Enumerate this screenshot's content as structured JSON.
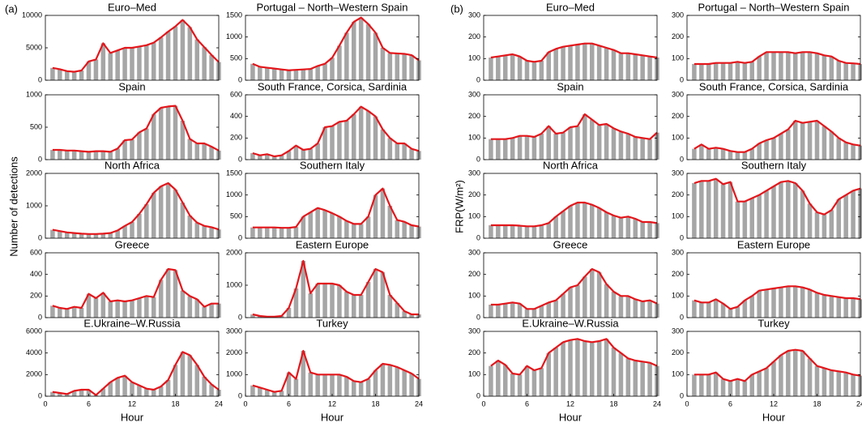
{
  "figure": {
    "panels": [
      {
        "label": "(a)",
        "ylabel": "Number of detections"
      },
      {
        "label": "(b)",
        "ylabel": "FRP(W/m²)"
      }
    ]
  },
  "chart_data": [
    {
      "type": "bar_line",
      "title": "Euro–Med",
      "x": [
        1,
        2,
        3,
        4,
        5,
        6,
        7,
        8,
        9,
        10,
        11,
        12,
        13,
        14,
        15,
        16,
        17,
        18,
        19,
        20,
        21,
        22,
        23,
        24
      ],
      "values": [
        1900,
        1700,
        1400,
        1300,
        1500,
        2900,
        3200,
        5700,
        4200,
        4600,
        5000,
        5000,
        5200,
        5400,
        5800,
        6600,
        7500,
        8300,
        9300,
        8200,
        6300,
        5100,
        3900,
        2800
      ],
      "xlim": [
        0,
        24
      ],
      "ylim": [
        0,
        10000
      ],
      "yticks": [
        0,
        5000,
        10000
      ],
      "color": "#a6a6a6",
      "line_color": "#e3161b"
    },
    {
      "type": "bar_line",
      "title": "Portugal – North–Western Spain",
      "x": [
        1,
        2,
        3,
        4,
        5,
        6,
        7,
        8,
        9,
        10,
        11,
        12,
        13,
        14,
        15,
        16,
        17,
        18,
        19,
        20,
        21,
        22,
        23,
        24
      ],
      "values": [
        380,
        310,
        290,
        270,
        250,
        230,
        240,
        250,
        260,
        330,
        380,
        520,
        800,
        1100,
        1350,
        1450,
        1300,
        1100,
        750,
        630,
        620,
        610,
        580,
        460
      ],
      "xlim": [
        0,
        24
      ],
      "ylim": [
        0,
        1500
      ],
      "yticks": [
        0,
        500,
        1000,
        1500
      ],
      "color": "#a6a6a6",
      "line_color": "#e3161b"
    },
    {
      "type": "bar_line",
      "title": "Spain",
      "x": [
        1,
        2,
        3,
        4,
        5,
        6,
        7,
        8,
        9,
        10,
        11,
        12,
        13,
        14,
        15,
        16,
        17,
        18,
        19,
        20,
        21,
        22,
        23,
        24
      ],
      "values": [
        150,
        150,
        140,
        140,
        130,
        120,
        130,
        130,
        120,
        170,
        300,
        310,
        420,
        480,
        700,
        800,
        820,
        830,
        600,
        320,
        250,
        250,
        200,
        140
      ],
      "xlim": [
        0,
        24
      ],
      "ylim": [
        0,
        1000
      ],
      "yticks": [
        0,
        500,
        1000
      ],
      "color": "#a6a6a6",
      "line_color": "#e3161b"
    },
    {
      "type": "bar_line",
      "title": "South France, Corsica, Sardinia",
      "x": [
        1,
        2,
        3,
        4,
        5,
        6,
        7,
        8,
        9,
        10,
        11,
        12,
        13,
        14,
        15,
        16,
        17,
        18,
        19,
        20,
        21,
        22,
        23,
        24
      ],
      "values": [
        60,
        40,
        50,
        30,
        40,
        80,
        130,
        90,
        100,
        150,
        300,
        310,
        350,
        360,
        420,
        490,
        450,
        400,
        280,
        200,
        150,
        150,
        100,
        80
      ],
      "xlim": [
        0,
        24
      ],
      "ylim": [
        0,
        600
      ],
      "yticks": [
        0,
        200,
        400,
        600
      ],
      "color": "#a6a6a6",
      "line_color": "#e3161b"
    },
    {
      "type": "bar_line",
      "title": "North Africa",
      "x": [
        1,
        2,
        3,
        4,
        5,
        6,
        7,
        8,
        9,
        10,
        11,
        12,
        13,
        14,
        15,
        16,
        17,
        18,
        19,
        20,
        21,
        22,
        23,
        24
      ],
      "values": [
        260,
        220,
        180,
        160,
        140,
        130,
        130,
        140,
        160,
        240,
        380,
        500,
        750,
        1050,
        1400,
        1600,
        1700,
        1500,
        1100,
        700,
        480,
        380,
        340,
        270
      ],
      "xlim": [
        0,
        24
      ],
      "ylim": [
        0,
        2000
      ],
      "yticks": [
        0,
        1000,
        2000
      ],
      "color": "#a6a6a6",
      "line_color": "#e3161b"
    },
    {
      "type": "bar_line",
      "title": "Southern Italy",
      "x": [
        1,
        2,
        3,
        4,
        5,
        6,
        7,
        8,
        9,
        10,
        11,
        12,
        13,
        14,
        15,
        16,
        17,
        18,
        19,
        20,
        21,
        22,
        23,
        24
      ],
      "values": [
        250,
        250,
        250,
        250,
        240,
        240,
        260,
        500,
        600,
        700,
        650,
        580,
        500,
        400,
        330,
        330,
        500,
        1000,
        1150,
        750,
        420,
        380,
        300,
        270
      ],
      "xlim": [
        0,
        24
      ],
      "ylim": [
        0,
        1500
      ],
      "yticks": [
        0,
        500,
        1000,
        1500
      ],
      "color": "#a6a6a6",
      "line_color": "#e3161b"
    },
    {
      "type": "bar_line",
      "title": "Greece",
      "x": [
        1,
        2,
        3,
        4,
        5,
        6,
        7,
        8,
        9,
        10,
        11,
        12,
        13,
        14,
        15,
        16,
        17,
        18,
        19,
        20,
        21,
        22,
        23,
        24
      ],
      "values": [
        110,
        90,
        80,
        100,
        90,
        220,
        180,
        230,
        150,
        160,
        150,
        160,
        180,
        200,
        190,
        350,
        450,
        440,
        250,
        200,
        170,
        100,
        130,
        130
      ],
      "xlim": [
        0,
        24
      ],
      "ylim": [
        0,
        600
      ],
      "yticks": [
        0,
        200,
        400,
        600
      ],
      "color": "#a6a6a6",
      "line_color": "#e3161b"
    },
    {
      "type": "bar_line",
      "title": "Eastern Europe",
      "x": [
        1,
        2,
        3,
        4,
        5,
        6,
        7,
        8,
        9,
        10,
        11,
        12,
        13,
        14,
        15,
        16,
        17,
        18,
        19,
        20,
        21,
        22,
        23,
        24
      ],
      "values": [
        100,
        50,
        30,
        30,
        50,
        300,
        900,
        1750,
        750,
        1050,
        1050,
        1050,
        1000,
        800,
        700,
        700,
        1100,
        1500,
        1400,
        700,
        450,
        200,
        100,
        100
      ],
      "xlim": [
        0,
        24
      ],
      "ylim": [
        0,
        2000
      ],
      "yticks": [
        0,
        1000,
        2000
      ],
      "color": "#a6a6a6",
      "line_color": "#e3161b"
    },
    {
      "type": "bar_line",
      "title": "E.Ukraine–W.Russia",
      "x": [
        1,
        2,
        3,
        4,
        5,
        6,
        7,
        8,
        9,
        10,
        11,
        12,
        13,
        14,
        15,
        16,
        17,
        18,
        19,
        20,
        21,
        22,
        23,
        24
      ],
      "values": [
        400,
        300,
        200,
        500,
        600,
        600,
        100,
        700,
        1300,
        1700,
        1900,
        1300,
        1000,
        700,
        600,
        900,
        1500,
        2900,
        4100,
        3800,
        2900,
        1800,
        1100,
        600
      ],
      "xlim": [
        0,
        24
      ],
      "ylim": [
        0,
        6000
      ],
      "yticks": [
        0,
        2000,
        4000,
        6000
      ],
      "xticks": [
        0,
        6,
        12,
        18,
        24
      ],
      "xlabel": "Hour",
      "color": "#a6a6a6",
      "line_color": "#e3161b"
    },
    {
      "type": "bar_line",
      "title": "Turkey",
      "x": [
        1,
        2,
        3,
        4,
        5,
        6,
        7,
        8,
        9,
        10,
        11,
        12,
        13,
        14,
        15,
        16,
        17,
        18,
        19,
        20,
        21,
        22,
        23,
        24
      ],
      "values": [
        500,
        400,
        300,
        200,
        250,
        1100,
        800,
        2100,
        1100,
        1000,
        1000,
        1000,
        1000,
        900,
        700,
        650,
        800,
        1200,
        1500,
        1450,
        1350,
        1200,
        1050,
        800
      ],
      "xlim": [
        0,
        24
      ],
      "ylim": [
        0,
        3000
      ],
      "yticks": [
        0,
        1000,
        2000,
        3000
      ],
      "xticks": [
        0,
        6,
        12,
        18,
        24
      ],
      "xlabel": "Hour",
      "color": "#a6a6a6",
      "line_color": "#e3161b"
    },
    {
      "type": "bar_line",
      "title": "Euro–Med",
      "x": [
        1,
        2,
        3,
        4,
        5,
        6,
        7,
        8,
        9,
        10,
        11,
        12,
        13,
        14,
        15,
        16,
        17,
        18,
        19,
        20,
        21,
        22,
        23,
        24
      ],
      "values": [
        105,
        110,
        115,
        120,
        110,
        90,
        85,
        90,
        130,
        145,
        155,
        160,
        165,
        170,
        170,
        160,
        150,
        140,
        125,
        125,
        120,
        115,
        110,
        105
      ],
      "xlim": [
        0,
        24
      ],
      "ylim": [
        0,
        300
      ],
      "yticks": [
        0,
        100,
        200,
        300
      ],
      "color": "#a6a6a6",
      "line_color": "#e3161b"
    },
    {
      "type": "bar_line",
      "title": "Portugal – North–Western Spain",
      "x": [
        1,
        2,
        3,
        4,
        5,
        6,
        7,
        8,
        9,
        10,
        11,
        12,
        13,
        14,
        15,
        16,
        17,
        18,
        19,
        20,
        21,
        22,
        23,
        24
      ],
      "values": [
        75,
        75,
        75,
        80,
        80,
        80,
        85,
        80,
        85,
        110,
        130,
        130,
        130,
        130,
        125,
        130,
        130,
        125,
        115,
        110,
        90,
        80,
        78,
        75
      ],
      "xlim": [
        0,
        24
      ],
      "ylim": [
        0,
        300
      ],
      "yticks": [
        0,
        100,
        200,
        300
      ],
      "color": "#a6a6a6",
      "line_color": "#e3161b"
    },
    {
      "type": "bar_line",
      "title": "Spain",
      "x": [
        1,
        2,
        3,
        4,
        5,
        6,
        7,
        8,
        9,
        10,
        11,
        12,
        13,
        14,
        15,
        16,
        17,
        18,
        19,
        20,
        21,
        22,
        23,
        24
      ],
      "values": [
        95,
        95,
        95,
        100,
        110,
        110,
        105,
        120,
        155,
        120,
        125,
        150,
        155,
        210,
        185,
        160,
        165,
        145,
        130,
        120,
        105,
        100,
        95,
        125
      ],
      "xlim": [
        0,
        24
      ],
      "ylim": [
        0,
        300
      ],
      "yticks": [
        0,
        100,
        200,
        300
      ],
      "color": "#a6a6a6",
      "line_color": "#e3161b"
    },
    {
      "type": "bar_line",
      "title": "South France, Corsica, Sardinia",
      "x": [
        1,
        2,
        3,
        4,
        5,
        6,
        7,
        8,
        9,
        10,
        11,
        12,
        13,
        14,
        15,
        16,
        17,
        18,
        19,
        20,
        21,
        22,
        23,
        24
      ],
      "values": [
        50,
        70,
        50,
        55,
        50,
        40,
        35,
        35,
        50,
        75,
        90,
        100,
        120,
        140,
        180,
        170,
        175,
        180,
        155,
        130,
        100,
        80,
        70,
        65
      ],
      "xlim": [
        0,
        24
      ],
      "ylim": [
        0,
        300
      ],
      "yticks": [
        0,
        100,
        200,
        300
      ],
      "color": "#a6a6a6",
      "line_color": "#e3161b"
    },
    {
      "type": "bar_line",
      "title": "North Africa",
      "x": [
        1,
        2,
        3,
        4,
        5,
        6,
        7,
        8,
        9,
        10,
        11,
        12,
        13,
        14,
        15,
        16,
        17,
        18,
        19,
        20,
        21,
        22,
        23,
        24
      ],
      "values": [
        60,
        60,
        60,
        60,
        58,
        55,
        55,
        60,
        70,
        100,
        125,
        150,
        165,
        165,
        155,
        140,
        120,
        105,
        95,
        100,
        90,
        75,
        75,
        70
      ],
      "xlim": [
        0,
        24
      ],
      "ylim": [
        0,
        300
      ],
      "yticks": [
        0,
        100,
        200,
        300
      ],
      "color": "#a6a6a6",
      "line_color": "#e3161b"
    },
    {
      "type": "bar_line",
      "title": "Southern Italy",
      "x": [
        1,
        2,
        3,
        4,
        5,
        6,
        7,
        8,
        9,
        10,
        11,
        12,
        13,
        14,
        15,
        16,
        17,
        18,
        19,
        20,
        21,
        22,
        23,
        24
      ],
      "values": [
        255,
        265,
        265,
        275,
        250,
        260,
        170,
        170,
        185,
        200,
        220,
        240,
        260,
        265,
        255,
        220,
        160,
        120,
        110,
        130,
        180,
        200,
        220,
        230
      ],
      "xlim": [
        0,
        24
      ],
      "ylim": [
        0,
        300
      ],
      "yticks": [
        0,
        100,
        200,
        300
      ],
      "color": "#a6a6a6",
      "line_color": "#e3161b"
    },
    {
      "type": "bar_line",
      "title": "Greece",
      "x": [
        1,
        2,
        3,
        4,
        5,
        6,
        7,
        8,
        9,
        10,
        11,
        12,
        13,
        14,
        15,
        16,
        17,
        18,
        19,
        20,
        21,
        22,
        23,
        24
      ],
      "values": [
        60,
        60,
        65,
        70,
        65,
        40,
        40,
        55,
        70,
        80,
        110,
        140,
        150,
        190,
        225,
        210,
        155,
        120,
        100,
        100,
        85,
        75,
        80,
        65
      ],
      "xlim": [
        0,
        24
      ],
      "ylim": [
        0,
        300
      ],
      "yticks": [
        0,
        100,
        200,
        300
      ],
      "color": "#a6a6a6",
      "line_color": "#e3161b"
    },
    {
      "type": "bar_line",
      "title": "Eastern Europe",
      "x": [
        1,
        2,
        3,
        4,
        5,
        6,
        7,
        8,
        9,
        10,
        11,
        12,
        13,
        14,
        15,
        16,
        17,
        18,
        19,
        20,
        21,
        22,
        23,
        24
      ],
      "values": [
        80,
        70,
        70,
        85,
        65,
        40,
        50,
        80,
        100,
        125,
        130,
        135,
        140,
        145,
        145,
        140,
        130,
        115,
        105,
        100,
        95,
        90,
        90,
        85
      ],
      "xlim": [
        0,
        24
      ],
      "ylim": [
        0,
        300
      ],
      "yticks": [
        0,
        100,
        200,
        300
      ],
      "color": "#a6a6a6",
      "line_color": "#e3161b"
    },
    {
      "type": "bar_line",
      "title": "E.Ukraine–W.Russia",
      "x": [
        1,
        2,
        3,
        4,
        5,
        6,
        7,
        8,
        9,
        10,
        11,
        12,
        13,
        14,
        15,
        16,
        17,
        18,
        19,
        20,
        21,
        22,
        23,
        24
      ],
      "values": [
        140,
        165,
        145,
        105,
        100,
        140,
        120,
        130,
        200,
        225,
        250,
        260,
        265,
        255,
        250,
        255,
        265,
        225,
        200,
        175,
        165,
        160,
        155,
        140
      ],
      "xlim": [
        0,
        24
      ],
      "ylim": [
        0,
        300
      ],
      "yticks": [
        0,
        100,
        200,
        300
      ],
      "xticks": [
        0,
        6,
        12,
        18,
        24
      ],
      "xlabel": "Hour",
      "color": "#a6a6a6",
      "line_color": "#e3161b"
    },
    {
      "type": "bar_line",
      "title": "Turkey",
      "x": [
        1,
        2,
        3,
        4,
        5,
        6,
        7,
        8,
        9,
        10,
        11,
        12,
        13,
        14,
        15,
        16,
        17,
        18,
        19,
        20,
        21,
        22,
        23,
        24
      ],
      "values": [
        100,
        100,
        100,
        110,
        80,
        70,
        80,
        70,
        100,
        115,
        130,
        160,
        190,
        210,
        215,
        210,
        175,
        140,
        130,
        120,
        115,
        110,
        100,
        95
      ],
      "xlim": [
        0,
        24
      ],
      "ylim": [
        0,
        300
      ],
      "yticks": [
        0,
        100,
        200,
        300
      ],
      "xticks": [
        0,
        6,
        12,
        18,
        24
      ],
      "xlabel": "Hour",
      "color": "#a6a6a6",
      "line_color": "#e3161b"
    }
  ]
}
